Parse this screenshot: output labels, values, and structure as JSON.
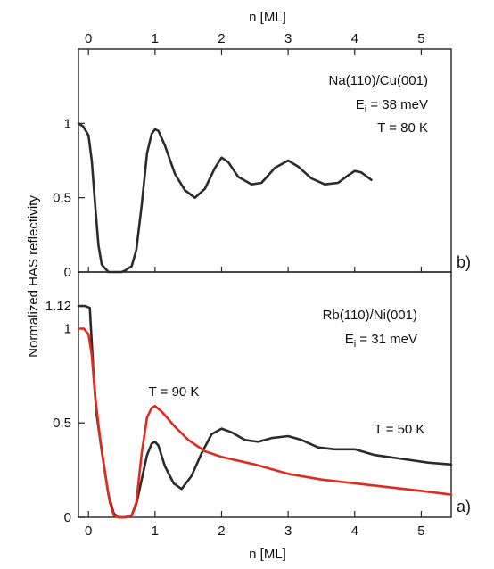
{
  "chart_data": {
    "type": "line",
    "xlabel": "n [ML]",
    "ylabel": "Normalized HAS reflectivity",
    "xlim": [
      -0.15,
      5.45
    ],
    "xticks": [
      "0",
      "1",
      "2",
      "3",
      "4",
      "5"
    ],
    "xtick_values": [
      0,
      1,
      2,
      3,
      4,
      5
    ],
    "top_axis_label": "n [ML]",
    "panels": [
      {
        "id": "b",
        "panel_label": "b)",
        "ylim": [
          0,
          1.5
        ],
        "yticks": [
          "0",
          "0.5",
          "1"
        ],
        "ytick_values": [
          0,
          0.5,
          1
        ],
        "annotations": [
          "Na(110)/Cu(001)",
          "E",
          "i",
          " = 38 meV",
          "T = 80 K"
        ],
        "series": [
          {
            "color": "#2b2b2b",
            "points": [
              [
                -0.15,
                1.0
              ],
              [
                -0.08,
                0.98
              ],
              [
                0.0,
                0.92
              ],
              [
                0.05,
                0.75
              ],
              [
                0.1,
                0.45
              ],
              [
                0.15,
                0.18
              ],
              [
                0.2,
                0.05
              ],
              [
                0.3,
                0.0
              ],
              [
                0.4,
                0.0
              ],
              [
                0.5,
                0.0
              ],
              [
                0.55,
                0.01
              ],
              [
                0.65,
                0.04
              ],
              [
                0.72,
                0.15
              ],
              [
                0.8,
                0.45
              ],
              [
                0.88,
                0.8
              ],
              [
                0.95,
                0.93
              ],
              [
                1.0,
                0.96
              ],
              [
                1.05,
                0.95
              ],
              [
                1.15,
                0.85
              ],
              [
                1.3,
                0.66
              ],
              [
                1.45,
                0.55
              ],
              [
                1.6,
                0.5
              ],
              [
                1.75,
                0.56
              ],
              [
                1.9,
                0.7
              ],
              [
                2.0,
                0.77
              ],
              [
                2.1,
                0.74
              ],
              [
                2.25,
                0.64
              ],
              [
                2.45,
                0.59
              ],
              [
                2.6,
                0.6
              ],
              [
                2.8,
                0.7
              ],
              [
                3.0,
                0.75
              ],
              [
                3.15,
                0.71
              ],
              [
                3.35,
                0.63
              ],
              [
                3.55,
                0.59
              ],
              [
                3.75,
                0.6
              ],
              [
                3.9,
                0.65
              ],
              [
                4.0,
                0.68
              ],
              [
                4.1,
                0.67
              ],
              [
                4.25,
                0.62
              ]
            ]
          }
        ]
      },
      {
        "id": "a",
        "panel_label": "a)",
        "ylim": [
          0,
          1.3
        ],
        "yticks": [
          "0",
          "0.5",
          "1",
          "1.12"
        ],
        "ytick_values": [
          0,
          0.5,
          1,
          1.12
        ],
        "annotations": [
          "Rb(110)/Ni(001)",
          "E",
          "i",
          " = 31 meV",
          "T = 90 K",
          "T = 50 K"
        ],
        "series": [
          {
            "name": "T = 50 K",
            "color": "#2b2b2b",
            "points": [
              [
                -0.15,
                1.12
              ],
              [
                -0.05,
                1.12
              ],
              [
                0.02,
                1.11
              ],
              [
                0.07,
                0.8
              ],
              [
                0.12,
                0.55
              ],
              [
                0.2,
                0.35
              ],
              [
                0.3,
                0.12
              ],
              [
                0.38,
                0.02
              ],
              [
                0.45,
                0.0
              ],
              [
                0.55,
                0.0
              ],
              [
                0.65,
                0.01
              ],
              [
                0.72,
                0.07
              ],
              [
                0.8,
                0.2
              ],
              [
                0.88,
                0.33
              ],
              [
                0.95,
                0.39
              ],
              [
                1.0,
                0.4
              ],
              [
                1.05,
                0.38
              ],
              [
                1.15,
                0.27
              ],
              [
                1.28,
                0.18
              ],
              [
                1.4,
                0.15
              ],
              [
                1.55,
                0.22
              ],
              [
                1.7,
                0.34
              ],
              [
                1.85,
                0.44
              ],
              [
                2.0,
                0.47
              ],
              [
                2.15,
                0.45
              ],
              [
                2.35,
                0.41
              ],
              [
                2.55,
                0.4
              ],
              [
                2.75,
                0.42
              ],
              [
                3.0,
                0.43
              ],
              [
                3.2,
                0.41
              ],
              [
                3.45,
                0.37
              ],
              [
                3.7,
                0.36
              ],
              [
                4.0,
                0.36
              ],
              [
                4.3,
                0.33
              ],
              [
                4.7,
                0.31
              ],
              [
                5.1,
                0.29
              ],
              [
                5.45,
                0.28
              ]
            ]
          },
          {
            "name": "T = 90 K",
            "color": "#e02a1e",
            "points": [
              [
                -0.15,
                1.0
              ],
              [
                -0.07,
                1.0
              ],
              [
                0.0,
                0.97
              ],
              [
                0.05,
                0.86
              ],
              [
                0.1,
                0.64
              ],
              [
                0.17,
                0.43
              ],
              [
                0.25,
                0.23
              ],
              [
                0.32,
                0.08
              ],
              [
                0.38,
                0.01
              ],
              [
                0.45,
                0.0
              ],
              [
                0.55,
                0.0
              ],
              [
                0.65,
                0.01
              ],
              [
                0.72,
                0.08
              ],
              [
                0.8,
                0.34
              ],
              [
                0.88,
                0.53
              ],
              [
                0.95,
                0.58
              ],
              [
                1.0,
                0.59
              ],
              [
                1.1,
                0.56
              ],
              [
                1.3,
                0.48
              ],
              [
                1.5,
                0.41
              ],
              [
                1.75,
                0.35
              ],
              [
                2.0,
                0.32
              ],
              [
                2.5,
                0.28
              ],
              [
                3.0,
                0.23
              ],
              [
                3.5,
                0.2
              ],
              [
                4.0,
                0.18
              ],
              [
                4.5,
                0.16
              ],
              [
                5.0,
                0.14
              ],
              [
                5.45,
                0.12
              ]
            ]
          }
        ]
      }
    ]
  }
}
